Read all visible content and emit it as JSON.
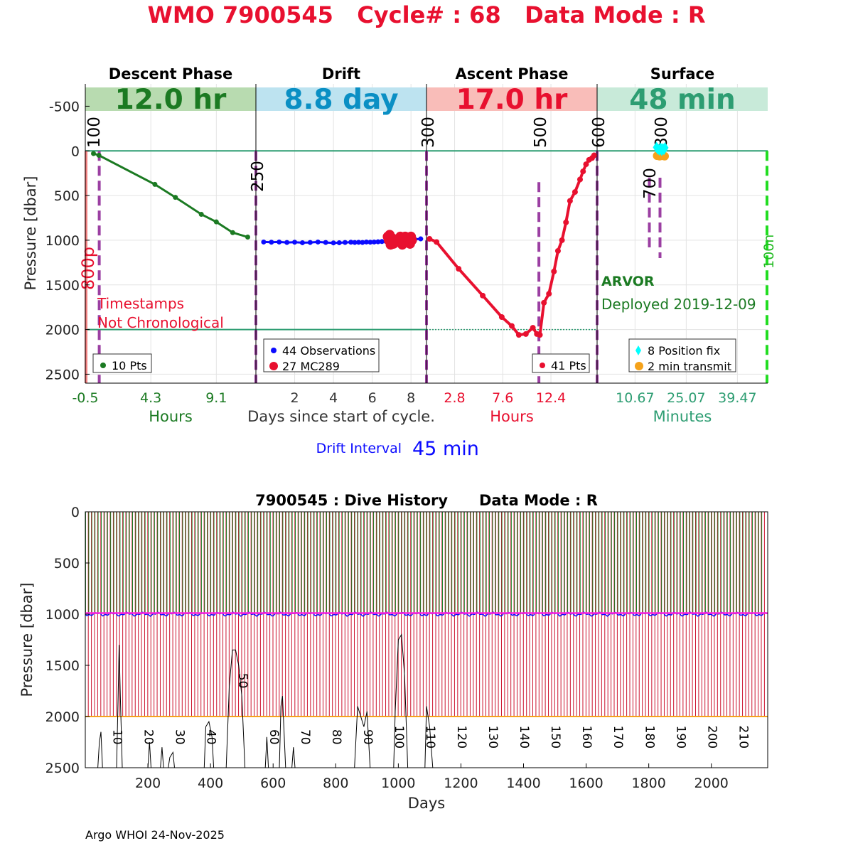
{
  "title": "WMO 7900545   Cycle# : 68   Data Mode : R",
  "colors": {
    "red": "#e8102f",
    "green": "#1b7a22",
    "blue": "#0b0bff",
    "teal": "#2d9d72",
    "purple": "#9b3fa2",
    "descent_bg": "#b8dbb0",
    "drift_bg": "#bde3f0",
    "drift_text": "#0a8fc4",
    "ascent_bg": "#f9bdb9",
    "surface_bg": "#c8ead9",
    "cyan": "#00ffff",
    "orange": "#f5a21b",
    "magenta": "#ff22dd"
  },
  "chart_data": [
    {
      "type": "line",
      "id": "cycle-profile",
      "ylabel": "Pressure [dbar]",
      "ylim": [
        2600,
        -750
      ],
      "yticks": [
        -500,
        0,
        500,
        1000,
        1500,
        2000,
        2500
      ],
      "ytick_labels": [
        "-500",
        "0",
        "500",
        "1000",
        "1500",
        "2000",
        "2500"
      ],
      "panels": [
        {
          "name": "descent",
          "phase_title": "Descent Phase",
          "duration": "12.0 hr",
          "xlim": [
            -0.5,
            12.0
          ],
          "xticks": [
            -0.5,
            4.3,
            9.1
          ],
          "xtick_labels": [
            "-0.5",
            "4.3",
            "9.1"
          ],
          "xlabel": "Hours",
          "series": [
            {
              "name": "10 Pts",
              "x": [
                0.1,
                0.5,
                4.6,
                6.1,
                8.0,
                9.1,
                10.3,
                11.4
              ],
              "y": [
                30,
                50,
                375,
                520,
                710,
                795,
                915,
                965
              ]
            }
          ],
          "legend": [
            "10 Pts"
          ],
          "vlines": [
            {
              "x": 0.0,
              "label": "100"
            }
          ],
          "side_label": "800p",
          "note": [
            "Timestamps",
            "Not Chronological"
          ]
        },
        {
          "name": "drift",
          "phase_title": "Drift",
          "duration": "8.8 day",
          "xlim": [
            0,
            8.8
          ],
          "xticks": [
            2,
            4,
            6,
            8
          ],
          "xtick_labels": [
            "2",
            "4",
            "6",
            "8"
          ],
          "xlabel": "Days since start of cycle.",
          "series": [
            {
              "name": "44 Observations",
              "x": [
                0.4,
                0.8,
                1.2,
                1.6,
                2.0,
                2.4,
                2.8,
                3.2,
                3.6,
                4.0,
                4.3,
                4.6,
                4.9,
                5.1,
                5.3,
                5.5,
                5.7,
                5.9,
                6.1,
                6.3,
                6.5,
                6.7,
                6.9,
                7.1,
                7.3,
                7.5,
                7.7,
                7.9,
                8.2,
                8.5
              ],
              "y": [
                1020,
                1022,
                1020,
                1025,
                1022,
                1028,
                1025,
                1020,
                1025,
                1030,
                1028,
                1025,
                1022,
                1025,
                1023,
                1025,
                1020,
                1022,
                1020,
                1018,
                1015,
                1012,
                1000,
                1005,
                995,
                1000,
                990,
                985,
                990,
                985
              ]
            },
            {
              "name": "27 MC289",
              "x": [
                6.8,
                6.85,
                6.9,
                6.95,
                7.0,
                7.05,
                7.1,
                7.45,
                7.5,
                7.55,
                7.6,
                7.65,
                7.7,
                7.95,
                8.0,
                8.05
              ],
              "y": [
                960,
                1000,
                940,
                1050,
                1020,
                980,
                1040,
                960,
                1010,
                1050,
                990,
                1030,
                960,
                1040,
                960,
                1000
              ]
            }
          ],
          "legend": [
            "44 Observations",
            "27 MC289"
          ],
          "vlines": [
            {
              "x": 0.0,
              "label": "250"
            }
          ]
        },
        {
          "name": "ascent",
          "phase_title": "Ascent Phase",
          "duration": "17.0 hr",
          "xlim": [
            0,
            17.0
          ],
          "xticks": [
            2.8,
            7.6,
            12.4
          ],
          "xtick_labels": [
            "2.8",
            "7.6",
            "12.4"
          ],
          "xlabel": "Hours",
          "series": [
            {
              "name": "41 Pts",
              "x": [
                0.3,
                1.0,
                3.2,
                5.6,
                7.5,
                8.5,
                9.2,
                9.9,
                10.6,
                11.0,
                11.3,
                11.7,
                12.2,
                12.7,
                13.1,
                13.5,
                13.9,
                14.3,
                14.8,
                15.3,
                15.6,
                15.9,
                16.2,
                16.5,
                16.7
              ],
              "y": [
                985,
                1020,
                1320,
                1620,
                1860,
                1960,
                2060,
                2050,
                1980,
                2050,
                2060,
                1700,
                1600,
                1350,
                1120,
                1000,
                800,
                560,
                460,
                320,
                230,
                150,
                100,
                80,
                50
              ]
            }
          ],
          "legend": [
            "41 Pts"
          ],
          "vlines": [
            {
              "x": 0.0,
              "label": "300"
            },
            {
              "x": 11.2,
              "label": "500"
            },
            {
              "x": 17.0,
              "label": "600"
            }
          ],
          "dotted_level": 2000
        },
        {
          "name": "surface",
          "phase_title": "Surface",
          "duration": "48 min",
          "xlim": [
            0,
            48
          ],
          "xticks": [
            10.67,
            25.07,
            39.47
          ],
          "xtick_labels": [
            "10.67",
            "25.07",
            "39.47"
          ],
          "xlabel": "Minutes",
          "series": [
            {
              "name": "8 Position fix",
              "x": [
                16.7,
                17.1,
                17.5,
                17.9,
                18.2,
                18.5,
                18.8,
                19.1
              ],
              "y": [
                -40,
                -20,
                -10,
                -30,
                -5,
                -25,
                -15,
                -35
              ]
            },
            {
              "name": "2 min transmit",
              "x": [
                16.9,
                17.6,
                18.3,
                19.0
              ],
              "y": [
                55,
                60,
                55,
                60
              ]
            }
          ],
          "legend": [
            "8 Position fix",
            "2 min transmit"
          ],
          "vlines": [
            {
              "x": 14.7,
              "label": "700"
            },
            {
              "x": 17.7,
              "label": "800"
            },
            {
              "x": 48,
              "label": "100n"
            }
          ],
          "info": [
            "ARVOR",
            "Deployed 2019-12-09"
          ]
        }
      ],
      "drift_interval_label": "Drift Interval",
      "drift_interval_value": "45 min"
    },
    {
      "type": "line",
      "id": "dive-history",
      "title": "7900545 : Dive History      Data Mode : R",
      "xlabel": "Days",
      "ylabel": "Pressure [dbar]",
      "xlim": [
        0,
        2180
      ],
      "ylim": [
        2500,
        0
      ],
      "xticks": [
        200,
        400,
        600,
        800,
        1000,
        1200,
        1400,
        1600,
        1800,
        2000
      ],
      "xtick_labels": [
        "200",
        "400",
        "600",
        "800",
        "1000",
        "1200",
        "1400",
        "1600",
        "1800",
        "2000"
      ],
      "yticks": [
        0,
        500,
        1000,
        1500,
        2000,
        2500
      ],
      "ytick_labels": [
        "0",
        "500",
        "1000",
        "1500",
        "2000",
        "2500"
      ],
      "cycle_count": 217,
      "cycle_period_days": 10,
      "park_level": 1000,
      "profile_level": 2000,
      "cycle_labels": [
        "10",
        "20",
        "30",
        "40",
        "50",
        "60",
        "70",
        "80",
        "90",
        "100",
        "110",
        "120",
        "130",
        "140",
        "150",
        "160",
        "170",
        "180",
        "190",
        "200",
        "210"
      ],
      "cycle_label_days": [
        90,
        190,
        290,
        390,
        490,
        590,
        690,
        790,
        890,
        990,
        1090,
        1190,
        1290,
        1390,
        1490,
        1590,
        1690,
        1790,
        1890,
        1990,
        2090
      ],
      "cycle_label_levels": [
        2200,
        2200,
        2200,
        2200,
        1650,
        2200,
        2200,
        2200,
        2200,
        2200,
        2200,
        2200,
        2200,
        2200,
        2200,
        2200,
        2200,
        2200,
        2200,
        2200,
        2200
      ],
      "bottom_trace": {
        "x": [
          40,
          45,
          50,
          55,
          100,
          105,
          108,
          112,
          118,
          200,
          205,
          210,
          240,
          245,
          250,
          265,
          270,
          280,
          285,
          380,
          385,
          395,
          405,
          410,
          450,
          460,
          470,
          480,
          490,
          500,
          510,
          575,
          580,
          585,
          620,
          625,
          630,
          640,
          660,
          665,
          670,
          860,
          870,
          880,
          890,
          900,
          910,
          985,
          990,
          1000,
          1010,
          1020,
          1030,
          1085,
          1090,
          1100,
          1110
        ],
        "y": [
          2500,
          2250,
          2150,
          2500,
          2500,
          1800,
          1300,
          1800,
          2500,
          2500,
          2250,
          2500,
          2500,
          2300,
          2500,
          2500,
          2400,
          2350,
          2500,
          2500,
          2100,
          2050,
          2200,
          2500,
          2500,
          1700,
          1350,
          1350,
          1500,
          1800,
          2500,
          2500,
          2200,
          2500,
          2500,
          1900,
          1800,
          2500,
          2500,
          2300,
          2500,
          2500,
          1900,
          2000,
          2100,
          1950,
          2500,
          2500,
          1950,
          1250,
          1200,
          1600,
          2500,
          2500,
          1900,
          2100,
          2500
        ]
      }
    }
  ],
  "footer": "Argo WHOI 24-Nov-2025"
}
